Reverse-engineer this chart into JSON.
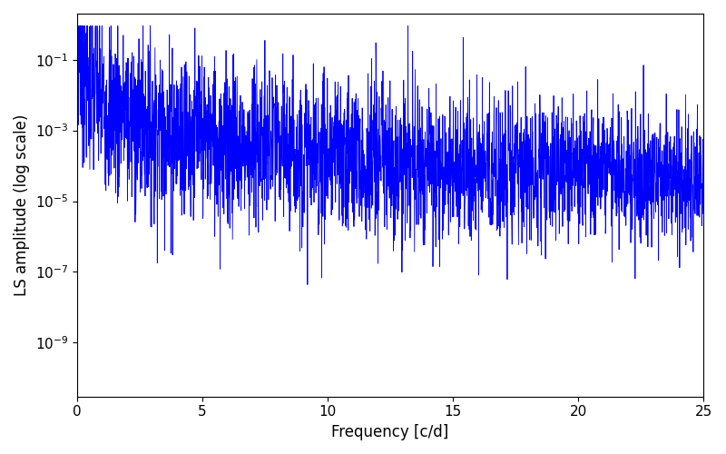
{
  "xlabel": "Frequency [c/d]",
  "ylabel": "LS amplitude (log scale)",
  "xlim": [
    0,
    25
  ],
  "ylim_log": [
    3e-11,
    2.0
  ],
  "line_color": "#0000ff",
  "line_width": 0.6,
  "figsize": [
    8.0,
    5.0
  ],
  "dpi": 100,
  "freq_max": 25.0,
  "n_points": 3000,
  "seed": 7,
  "peak_amplitude": 0.28,
  "background_color": "#ffffff",
  "tick_labelsize": 11,
  "label_fontsize": 12,
  "yticks": [
    1e-09,
    1e-07,
    1e-05,
    0.001,
    0.1
  ],
  "xticks": [
    0,
    5,
    10,
    15,
    20,
    25
  ],
  "A0": 0.008,
  "alpha": 1.6,
  "noise_sigma_low": 3.0,
  "noise_sigma_high": 2.0
}
